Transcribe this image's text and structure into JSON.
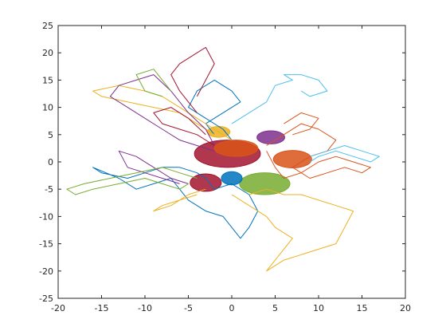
{
  "chart_data": {
    "type": "line",
    "title": "",
    "xlabel": "",
    "ylabel": "",
    "xlim": [
      -20,
      20
    ],
    "ylim": [
      -25,
      25
    ],
    "x_ticks": [
      -20,
      -15,
      -10,
      -5,
      0,
      5,
      10,
      15,
      20
    ],
    "y_ticks": [
      -25,
      -20,
      -15,
      -10,
      -5,
      0,
      5,
      10,
      15,
      20,
      25
    ],
    "x_tick_labels": [
      "-20",
      "-15",
      "-10",
      "-5",
      "0",
      "5",
      "10",
      "15",
      "20"
    ],
    "y_tick_labels": [
      "-25",
      "-20",
      "-15",
      "-10",
      "-5",
      "0",
      "5",
      "10",
      "15",
      "20",
      "25"
    ],
    "grid": false,
    "box": true,
    "legend": "none",
    "palette": [
      "#0072BD",
      "#D95319",
      "#EDB120",
      "#7E2F8E",
      "#77AC30",
      "#4DBEEE",
      "#A2142F"
    ],
    "series": [
      {
        "color": "#0072BD",
        "x": [
          -3,
          -4,
          -6,
          -8,
          -10,
          -12,
          -15,
          -16,
          -13,
          -11,
          -9,
          -7,
          -6,
          -5,
          -3,
          -1,
          0,
          1,
          2,
          3,
          2,
          0,
          -2,
          -3
        ],
        "y": [
          -3,
          -2,
          -1,
          -1,
          -2,
          -3,
          -2,
          -1,
          -3,
          -5,
          -4,
          -3,
          -5,
          -7,
          -9,
          -10,
          -12,
          -14,
          -12,
          -9,
          -6,
          -4,
          -5,
          -3
        ]
      },
      {
        "color": "#0072BD",
        "x": [
          0,
          -1,
          -3,
          -5,
          -4,
          -2,
          0,
          1,
          -1,
          -3,
          -2
        ],
        "y": [
          4,
          6,
          8,
          10,
          13,
          15,
          13,
          11,
          9,
          7,
          5
        ]
      },
      {
        "color": "#D95319",
        "x": [
          4,
          6,
          8,
          10,
          12,
          11,
          9,
          7,
          9,
          11,
          13,
          15,
          16,
          14,
          12,
          10,
          8,
          6,
          5,
          4
        ],
        "y": [
          3,
          5,
          7,
          6,
          4,
          2,
          1,
          -1,
          -3,
          -2,
          -1,
          -2,
          -1,
          0,
          1,
          0,
          -2,
          -3,
          -1,
          2
        ]
      },
      {
        "color": "#D95319",
        "x": [
          6,
          8,
          10,
          9,
          7
        ],
        "y": [
          7,
          9,
          8,
          6,
          5
        ]
      },
      {
        "color": "#EDB120",
        "x": [
          -2,
          -4,
          -6,
          -9,
          -12,
          -15,
          -16,
          -13,
          -10,
          -8,
          -6,
          -4,
          -2,
          0
        ],
        "y": [
          5,
          7,
          9,
          10,
          11,
          12,
          13,
          14,
          13,
          12,
          10,
          8,
          6,
          4
        ]
      },
      {
        "color": "#EDB120",
        "x": [
          0,
          2,
          4,
          5,
          7,
          6,
          5,
          4,
          6,
          8,
          10,
          12,
          14,
          12,
          10,
          8,
          6,
          4,
          2
        ],
        "y": [
          -6,
          -8,
          -10,
          -12,
          -14,
          -16,
          -18,
          -20,
          -18,
          -17,
          -16,
          -15,
          -9,
          -8,
          -7,
          -6,
          -6,
          -5,
          -6
        ]
      },
      {
        "color": "#EDB120",
        "x": [
          -4,
          -6,
          -8,
          -9,
          -7,
          -5,
          -3
        ],
        "y": [
          -6,
          -7,
          -8,
          -9,
          -8,
          -6,
          -5
        ]
      },
      {
        "color": "#7E2F8E",
        "x": [
          -2,
          -4,
          -6,
          -8,
          -10,
          -12,
          -14,
          -13,
          -11,
          -9,
          -7,
          -5,
          -3,
          -2
        ],
        "y": [
          2,
          3,
          4,
          6,
          8,
          10,
          12,
          14,
          15,
          16,
          13,
          9,
          6,
          3
        ]
      },
      {
        "color": "#7E2F8E",
        "x": [
          -6,
          -8,
          -10,
          -12,
          -13,
          -11,
          -9,
          -7,
          -5
        ],
        "y": [
          -4,
          -3,
          -2,
          -1,
          2,
          1,
          -1,
          -3,
          -4
        ]
      },
      {
        "color": "#77AC30",
        "x": [
          -4,
          -6,
          -8,
          -11,
          -14,
          -17,
          -19,
          -18,
          -16,
          -13,
          -10,
          -8,
          -6,
          -5
        ],
        "y": [
          -3,
          -2,
          -1,
          -2,
          -3,
          -4,
          -5,
          -6,
          -5,
          -4,
          -3,
          -4,
          -5,
          -4
        ]
      },
      {
        "color": "#77AC30",
        "x": [
          -8,
          -10,
          -11,
          -9,
          -8,
          -7
        ],
        "y": [
          12,
          13,
          16,
          17,
          15,
          13
        ]
      },
      {
        "color": "#4DBEEE",
        "x": [
          0,
          2,
          4,
          5,
          7,
          6,
          8,
          10,
          11,
          9,
          8
        ],
        "y": [
          7,
          9,
          11,
          14,
          15,
          16,
          16,
          15,
          13,
          12,
          13
        ]
      },
      {
        "color": "#4DBEEE",
        "x": [
          9,
          11,
          13,
          15,
          17,
          16,
          14,
          12,
          10,
          9
        ],
        "y": [
          1,
          2,
          3,
          2,
          1,
          0,
          1,
          2,
          1,
          0
        ]
      },
      {
        "color": "#A2142F",
        "x": [
          -4,
          -5,
          -6,
          -7,
          -6,
          -4,
          -3,
          -2,
          -3,
          -4
        ],
        "y": [
          9,
          11,
          13,
          16,
          18,
          20,
          21,
          18,
          15,
          12
        ]
      },
      {
        "color": "#A2142F",
        "x": [
          -2,
          -4,
          -6,
          -8,
          -9,
          -7,
          -5,
          -3
        ],
        "y": [
          3,
          5,
          6,
          7,
          9,
          10,
          8,
          5
        ]
      }
    ],
    "clusters": [
      {
        "color": "#A2142F",
        "cx": -0.5,
        "cy": 1.5,
        "rx": 3.8,
        "ry": 2.5
      },
      {
        "color": "#D95319",
        "cx": 0.5,
        "cy": 2.5,
        "rx": 2.5,
        "ry": 1.5
      },
      {
        "color": "#7E2F8E",
        "cx": 4.5,
        "cy": 4.5,
        "rx": 1.6,
        "ry": 1.2
      },
      {
        "color": "#77AC30",
        "cx": 3.8,
        "cy": -4.0,
        "rx": 2.9,
        "ry": 2.0
      },
      {
        "color": "#A2142F",
        "cx": -3.0,
        "cy": -3.8,
        "rx": 1.8,
        "ry": 1.6
      },
      {
        "color": "#D95319",
        "cx": 7.0,
        "cy": 0.5,
        "rx": 2.2,
        "ry": 1.6
      },
      {
        "color": "#0072BD",
        "cx": 0.0,
        "cy": -3.0,
        "rx": 1.2,
        "ry": 1.2
      },
      {
        "color": "#EDB120",
        "cx": -1.5,
        "cy": 5.5,
        "rx": 1.3,
        "ry": 1.0
      }
    ]
  }
}
